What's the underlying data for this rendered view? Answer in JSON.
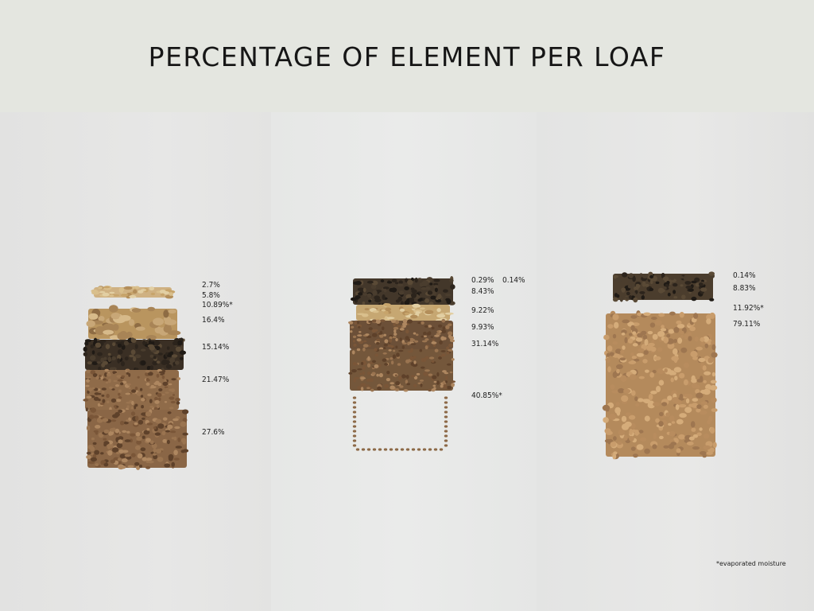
{
  "title": "PERCENTAGE OF ELEMENT PER LOAF",
  "footnote": "*evaporated moisture",
  "colors": {
    "background": "#e6e7e4",
    "header": "#e4e6e0",
    "seed_light": "#c9a66a",
    "nut": "#b89565",
    "dark_seed": "#3d3125",
    "flour_brown": "#8a6646",
    "flour_light": "#a88058"
  },
  "chart_data": [
    {
      "type": "bar",
      "stacked": true,
      "labels": [
        "2.7%",
        "5.8%",
        "10.89%*",
        "16.4%",
        "15.14%",
        "21.47%",
        "27.6%"
      ],
      "values": [
        2.7,
        5.8,
        10.89,
        16.4,
        15.14,
        21.47,
        27.6
      ]
    },
    {
      "type": "bar",
      "stacked": true,
      "labels": [
        "0.29%",
        "0.14%",
        "8.43%",
        "9.22%",
        "9.93%",
        "31.14%",
        "40.85%*"
      ],
      "values": [
        0.29,
        0.14,
        8.43,
        9.22,
        9.93,
        31.14,
        40.85
      ]
    },
    {
      "type": "bar",
      "stacked": true,
      "labels": [
        "0.14%",
        "8.83%",
        "11.92%*",
        "79.11%"
      ],
      "values": [
        0.14,
        8.83,
        11.92,
        79.11
      ]
    }
  ]
}
